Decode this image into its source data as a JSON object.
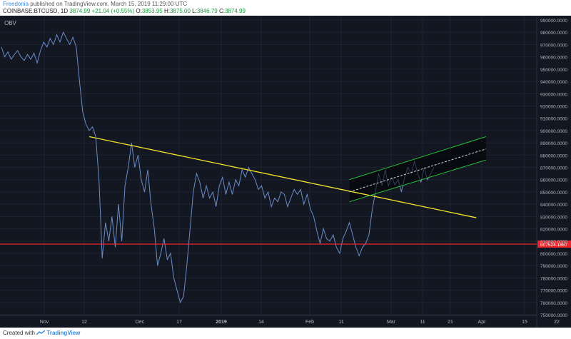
{
  "header": {
    "author": "Freedonia",
    "published_text": "published on TradingView.com, March 15, 2019 11:29:00 UTC",
    "symbol": "COINBASE:BTCUSD, 1D",
    "last": "3874.99",
    "change": "+21.04 (+0.55%)",
    "o_label": "O:",
    "o_value": "3853.95",
    "h_label": "H:",
    "h_value": "3875.00",
    "l_label": "L:",
    "l_value": "3846.79",
    "c_label": "C:",
    "c_value": "3874.99"
  },
  "footer": {
    "created_with": "Created with",
    "brand": "TradingView"
  },
  "colors": {
    "background": "#131722",
    "obv_line": "#6a8dc8",
    "trendline": "#f5e52a",
    "channel": "#2bbf3a",
    "support": "#e8262b",
    "axis_text": "#b2b5be",
    "grid": "#1e2330"
  },
  "chart_data": {
    "type": "line",
    "indicator_label": "OBV",
    "x_tick_labels": [
      "Nov",
      "12",
      "Dec",
      "17",
      "2019",
      "14",
      "Feb",
      "11",
      "Mar",
      "11",
      "21",
      "Apr",
      "15",
      "22"
    ],
    "y_tick_labels": [
      "990000.0000",
      "980000.0000",
      "970000.0000",
      "960000.0000",
      "950000.0000",
      "940000.0000",
      "930000.0000",
      "920000.0000",
      "910000.0000",
      "900000.0000",
      "890000.0000",
      "880000.0000",
      "870000.0000",
      "860000.0000",
      "850000.0000",
      "840000.0000",
      "830000.0000",
      "820000.0000",
      "810000.0000",
      "800000.0000",
      "790000.0000",
      "780000.0000",
      "770000.0000",
      "760000.0000",
      "750000.0000"
    ],
    "ylim": [
      750000,
      990000
    ],
    "support_label": "807524.1867",
    "support_value": 807524.1867,
    "series": [
      {
        "values": [
          968000,
          960000,
          964000,
          958000,
          962000,
          965000,
          960000,
          957000,
          962000,
          958000,
          963000,
          955000,
          965000,
          972000,
          968000,
          975000,
          970000,
          978000,
          972000,
          980000,
          975000,
          970000,
          976000,
          968000,
          940000,
          915000,
          905000,
          900000,
          903000,
          895000,
          860000,
          796000,
          825000,
          810000,
          830000,
          805000,
          840000,
          810000,
          855000,
          870000,
          890000,
          870000,
          880000,
          860000,
          850000,
          868000,
          840000,
          820000,
          790000,
          800000,
          812000,
          795000,
          800000,
          780000,
          770000,
          760000,
          765000,
          790000,
          820000,
          850000,
          865000,
          858000,
          845000,
          855000,
          845000,
          850000,
          838000,
          855000,
          862000,
          848000,
          858000,
          848000,
          860000,
          855000,
          868000,
          862000,
          870000,
          865000,
          860000,
          852000,
          855000,
          845000,
          850000,
          838000,
          845000,
          842000,
          850000,
          848000,
          838000,
          845000,
          852000,
          848000,
          852000,
          840000,
          848000,
          836000,
          830000,
          818000,
          808000,
          820000,
          812000,
          810000,
          815000,
          805000,
          800000,
          812000,
          818000,
          825000,
          815000,
          805000,
          798000,
          805000,
          808000,
          815000,
          835000,
          850000,
          865000,
          855000,
          868000,
          855000,
          862000,
          856000,
          860000,
          850000,
          862000,
          870000,
          865000,
          875000,
          865000,
          858000,
          870000,
          860000,
          865000,
          870000
        ]
      }
    ],
    "lines": [
      {
        "name": "descending trendline",
        "x0": 27,
        "y0": 895000,
        "x1": 146,
        "y1": 829000
      },
      {
        "name": "channel lower",
        "x0": 107,
        "y0": 842000,
        "x1": 149,
        "y1": 876000
      },
      {
        "name": "channel upper",
        "x0": 107,
        "y0": 860000,
        "x1": 149,
        "y1": 895000
      },
      {
        "name": "channel middle",
        "x0": 107,
        "y0": 850000,
        "x1": 149,
        "y1": 885000
      }
    ]
  }
}
